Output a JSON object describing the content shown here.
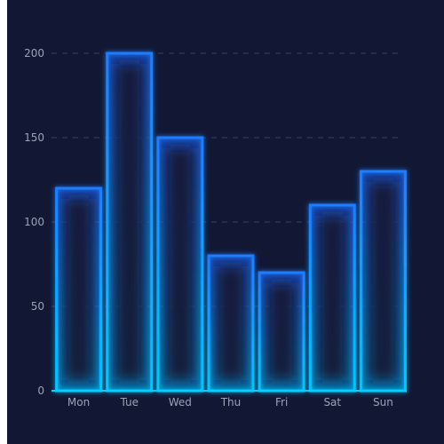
{
  "chart_data": {
    "type": "bar",
    "categories": [
      "Mon",
      "Tue",
      "Wed",
      "Thu",
      "Fri",
      "Sat",
      "Sun"
    ],
    "values": [
      120,
      200,
      150,
      80,
      70,
      110,
      130
    ],
    "title": "",
    "xlabel": "",
    "ylabel": "",
    "ylim": [
      0,
      200
    ],
    "yticks": [
      "0",
      "50",
      "100",
      "150",
      "200"
    ],
    "grid": true,
    "colors": {
      "background": "#121733",
      "bar_border": "#1f7dff",
      "bar_border_bottom": "#00c8ff",
      "bar_fill_top": "#1f66ff",
      "bar_fill_bottom": "#00b4ff",
      "grid": "#3a4060",
      "axis": "#00d2ff",
      "tick_label": "#9aa3b8"
    }
  }
}
